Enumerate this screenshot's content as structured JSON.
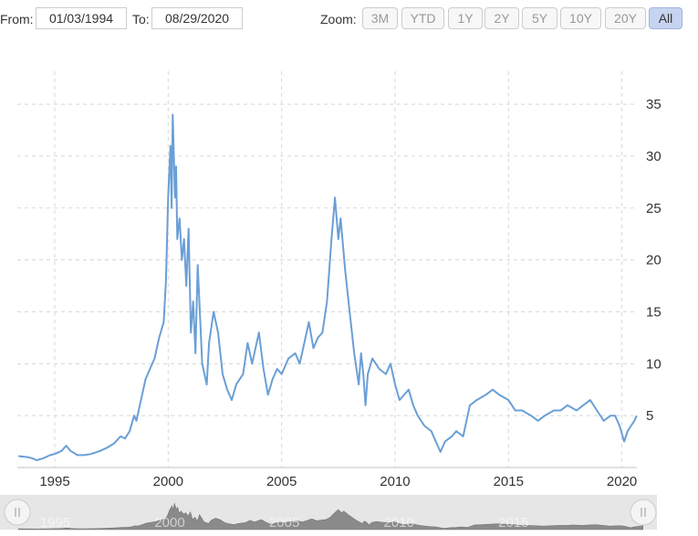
{
  "range": {
    "from_label": "From:",
    "from_value": "01/03/1994",
    "to_label": "To:",
    "to_value": "08/29/2020"
  },
  "zoom": {
    "label": "Zoom:",
    "buttons": [
      "3M",
      "YTD",
      "1Y",
      "2Y",
      "5Y",
      "10Y",
      "20Y",
      "All"
    ],
    "active": "All"
  },
  "colors": {
    "line": "#6a9fd6",
    "grid": "#d8d8d8",
    "navigator_fill": "#8a8a8a",
    "navigator_bg": "#e6e6e6",
    "active_button": "#c7d4ef"
  },
  "chart_data": {
    "type": "line",
    "title": "",
    "xlabel": "",
    "ylabel": "",
    "xlim": [
      1993.35,
      2020.66
    ],
    "ylim": [
      0,
      38
    ],
    "y_ticks": [
      5,
      10,
      15,
      20,
      25,
      30,
      35
    ],
    "x_ticks": [
      1995,
      2000,
      2005,
      2010,
      2015,
      2020
    ],
    "grid": true,
    "y_axis_side": "right",
    "series": [
      {
        "name": "",
        "points": [
          [
            1993.4,
            1.1
          ],
          [
            1993.8,
            1.0
          ],
          [
            1994.0,
            0.9
          ],
          [
            1994.2,
            0.7
          ],
          [
            1994.5,
            0.9
          ],
          [
            1994.8,
            1.2
          ],
          [
            1995.0,
            1.3
          ],
          [
            1995.3,
            1.6
          ],
          [
            1995.5,
            2.1
          ],
          [
            1995.7,
            1.6
          ],
          [
            1996.0,
            1.2
          ],
          [
            1996.3,
            1.2
          ],
          [
            1996.6,
            1.3
          ],
          [
            1997.0,
            1.6
          ],
          [
            1997.3,
            1.9
          ],
          [
            1997.6,
            2.3
          ],
          [
            1997.9,
            3.0
          ],
          [
            1998.1,
            2.8
          ],
          [
            1998.3,
            3.5
          ],
          [
            1998.5,
            5.0
          ],
          [
            1998.6,
            4.5
          ],
          [
            1998.8,
            6.5
          ],
          [
            1999.0,
            8.5
          ],
          [
            1999.2,
            9.5
          ],
          [
            1999.4,
            10.5
          ],
          [
            1999.6,
            12.5
          ],
          [
            1999.8,
            14.0
          ],
          [
            1999.9,
            18.0
          ],
          [
            2000.0,
            26.0
          ],
          [
            2000.1,
            31.0
          ],
          [
            2000.15,
            25.0
          ],
          [
            2000.2,
            34.0
          ],
          [
            2000.3,
            26.0
          ],
          [
            2000.35,
            29.0
          ],
          [
            2000.4,
            22.0
          ],
          [
            2000.5,
            24.0
          ],
          [
            2000.6,
            20.0
          ],
          [
            2000.7,
            22.0
          ],
          [
            2000.8,
            17.5
          ],
          [
            2000.9,
            23.0
          ],
          [
            2001.0,
            13.0
          ],
          [
            2001.1,
            16.0
          ],
          [
            2001.2,
            11.0
          ],
          [
            2001.3,
            19.5
          ],
          [
            2001.5,
            10.0
          ],
          [
            2001.7,
            8.0
          ],
          [
            2001.8,
            12.0
          ],
          [
            2002.0,
            15.0
          ],
          [
            2002.2,
            13.0
          ],
          [
            2002.4,
            9.0
          ],
          [
            2002.6,
            7.5
          ],
          [
            2002.8,
            6.5
          ],
          [
            2003.0,
            8.0
          ],
          [
            2003.3,
            9.0
          ],
          [
            2003.5,
            12.0
          ],
          [
            2003.7,
            10.0
          ],
          [
            2004.0,
            13.0
          ],
          [
            2004.2,
            9.5
          ],
          [
            2004.4,
            7.0
          ],
          [
            2004.6,
            8.5
          ],
          [
            2004.8,
            9.5
          ],
          [
            2005.0,
            9.0
          ],
          [
            2005.3,
            10.5
          ],
          [
            2005.6,
            11.0
          ],
          [
            2005.8,
            10.0
          ],
          [
            2006.0,
            12.0
          ],
          [
            2006.2,
            14.0
          ],
          [
            2006.4,
            11.5
          ],
          [
            2006.6,
            12.5
          ],
          [
            2006.8,
            13.0
          ],
          [
            2007.0,
            16.0
          ],
          [
            2007.2,
            22.0
          ],
          [
            2007.35,
            26.0
          ],
          [
            2007.5,
            22.0
          ],
          [
            2007.6,
            24.0
          ],
          [
            2007.8,
            19.0
          ],
          [
            2008.0,
            15.0
          ],
          [
            2008.2,
            11.0
          ],
          [
            2008.4,
            8.0
          ],
          [
            2008.5,
            11.0
          ],
          [
            2008.6,
            9.0
          ],
          [
            2008.7,
            6.0
          ],
          [
            2008.8,
            9.0
          ],
          [
            2009.0,
            10.5
          ],
          [
            2009.3,
            9.5
          ],
          [
            2009.6,
            9.0
          ],
          [
            2009.8,
            10.0
          ],
          [
            2010.0,
            8.0
          ],
          [
            2010.2,
            6.5
          ],
          [
            2010.4,
            7.0
          ],
          [
            2010.6,
            7.5
          ],
          [
            2010.8,
            6.0
          ],
          [
            2011.0,
            5.0
          ],
          [
            2011.3,
            4.0
          ],
          [
            2011.6,
            3.5
          ],
          [
            2011.8,
            2.5
          ],
          [
            2012.0,
            1.5
          ],
          [
            2012.2,
            2.5
          ],
          [
            2012.5,
            3.0
          ],
          [
            2012.7,
            3.5
          ],
          [
            2013.0,
            3.0
          ],
          [
            2013.3,
            6.0
          ],
          [
            2013.6,
            6.5
          ],
          [
            2014.0,
            7.0
          ],
          [
            2014.3,
            7.5
          ],
          [
            2014.6,
            7.0
          ],
          [
            2015.0,
            6.5
          ],
          [
            2015.3,
            5.5
          ],
          [
            2015.6,
            5.5
          ],
          [
            2016.0,
            5.0
          ],
          [
            2016.3,
            4.5
          ],
          [
            2016.6,
            5.0
          ],
          [
            2017.0,
            5.5
          ],
          [
            2017.3,
            5.5
          ],
          [
            2017.6,
            6.0
          ],
          [
            2018.0,
            5.5
          ],
          [
            2018.3,
            6.0
          ],
          [
            2018.6,
            6.5
          ],
          [
            2018.9,
            5.5
          ],
          [
            2019.2,
            4.5
          ],
          [
            2019.5,
            5.0
          ],
          [
            2019.7,
            5.0
          ],
          [
            2019.9,
            4.0
          ],
          [
            2020.1,
            2.5
          ],
          [
            2020.25,
            3.5
          ],
          [
            2020.4,
            4.0
          ],
          [
            2020.55,
            4.5
          ],
          [
            2020.65,
            5.0
          ]
        ]
      }
    ],
    "navigator": {
      "x_ticks": [
        1995,
        2000,
        2005,
        2010,
        2015
      ]
    }
  }
}
